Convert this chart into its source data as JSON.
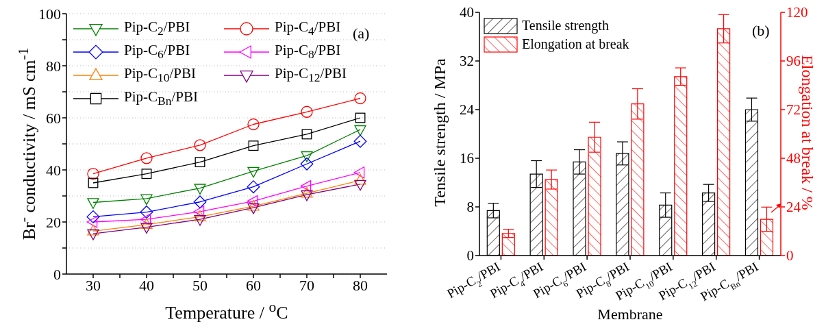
{
  "chart_data": [
    {
      "type": "line",
      "xlabel": "Temperature / $^{o}$C",
      "ylabel": "Br$^{-}$ conductivity / mS cm$^{-1}$",
      "x": [
        30,
        40,
        50,
        60,
        70,
        80
      ],
      "xlim": [
        25,
        85
      ],
      "xticks": [
        30,
        {
          "value": 35,
          "label": null
        },
        40,
        {
          "value": 45,
          "label": null
        },
        50,
        {
          "value": 55,
          "label": null
        },
        60,
        {
          "value": 65,
          "label": null
        },
        70,
        {
          "value": 75,
          "label": null
        },
        80
      ],
      "ylim": [
        0,
        100
      ],
      "yticks": [
        0,
        {
          "value": 10,
          "label": null
        },
        20,
        {
          "value": 30,
          "label": null
        },
        40,
        {
          "value": 50,
          "label": null
        },
        60,
        {
          "value": 70,
          "label": null
        },
        80,
        {
          "value": 90,
          "label": null
        },
        100
      ],
      "grid": "y",
      "legend": "top left",
      "annotations": [
        "(a)"
      ],
      "series": [
        {
          "name": "Pip-C$_{2}$/PBI",
          "color": "#008000",
          "marker": "triangle-down",
          "values": [
            27.5,
            29,
            33,
            39.5,
            45.5,
            55.5
          ]
        },
        {
          "name": "Pip-C$_{4}$/PBI",
          "color": "#ff0000",
          "marker": "circle",
          "values": [
            38.5,
            44.5,
            49.5,
            57.5,
            62.3,
            67.5
          ]
        },
        {
          "name": "Pip-C$_{6}$/PBI",
          "color": "#0000ff",
          "marker": "diamond",
          "values": [
            22,
            23.8,
            27.7,
            33.5,
            42.3,
            51
          ]
        },
        {
          "name": "Pip-C$_{8}$/PBI",
          "color": "#ff00ff",
          "marker": "triangle-left",
          "values": [
            20,
            21,
            24,
            28,
            33.8,
            39
          ]
        },
        {
          "name": "Pip-C$_{10}$/PBI",
          "color": "#ff8000",
          "marker": "triangle",
          "values": [
            16.5,
            19,
            22,
            26,
            31,
            36
          ]
        },
        {
          "name": "Pip-C$_{12}$/PBI",
          "color": "#800080",
          "marker": "triangle-down",
          "values": [
            15.5,
            18,
            21,
            25.5,
            30.5,
            34.5
          ]
        },
        {
          "name": "Pip-C$_{Bn}$/PBI",
          "color": "#000000",
          "marker": "square",
          "values": [
            35,
            38.5,
            43,
            49.3,
            53.7,
            60
          ]
        }
      ]
    },
    {
      "type": "bar",
      "xlabel": "Membrane",
      "ylabel": "Tensile strength / MPa",
      "y2label": "Elongation at break / %",
      "categories": [
        "Pip-C$_{2}$/PBI",
        "Pip-C$_{4}$/PBI",
        "Pip-C$_{6}$/PBI",
        "Pip-C$_{8}$/PBI",
        "Pip-C$_{10}$/PBI",
        "Pip-C$_{12}$/PBI",
        "Pip-C$_{Bn}$/PBI"
      ],
      "ylim": [
        0,
        40
      ],
      "yticks": [
        0,
        8,
        16,
        24,
        32,
        40
      ],
      "y2lim": [
        0,
        120
      ],
      "y2ticks": [
        0,
        24,
        48,
        72,
        96,
        120
      ],
      "legend": "top left",
      "annotations": [
        "(b)"
      ],
      "series": [
        {
          "name": "Tensile strength",
          "color": "#000000",
          "values": [
            7.4,
            13.4,
            15.4,
            16.8,
            8.3,
            10.3,
            24.0
          ],
          "errors": [
            1.2,
            2.2,
            2.0,
            1.9,
            2.0,
            1.4,
            1.9
          ]
        },
        {
          "name": "Elongation at break",
          "color": "#ff0000",
          "axis": "y2",
          "values": [
            10.9,
            37.5,
            58.4,
            74.8,
            88.3,
            111.9,
            17.9
          ],
          "errors": [
            2,
            4.7,
            7.4,
            7.5,
            4.3,
            7,
            6
          ]
        }
      ]
    }
  ]
}
